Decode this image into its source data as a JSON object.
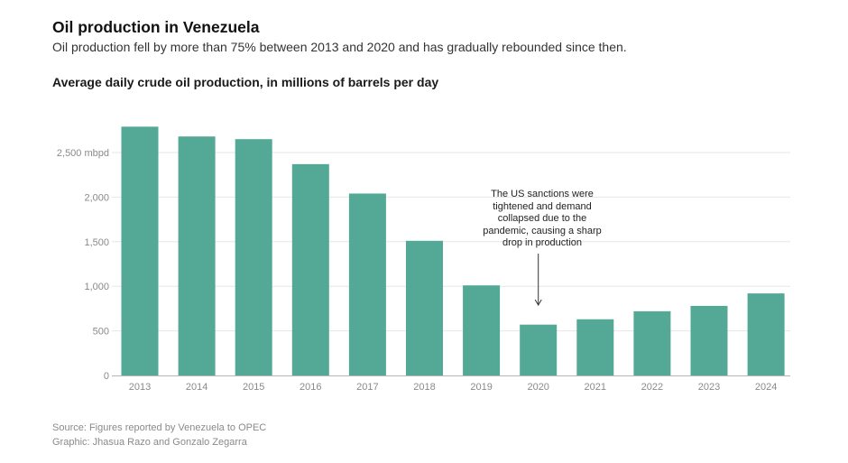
{
  "header": {
    "title": "Oil production in Venezuela",
    "subtitle": "Oil production fell by more than 75% between 2013 and 2020 and has gradually rebounded since then.",
    "chart_title": "Average daily crude oil production, in millions of barrels per day"
  },
  "annotation": {
    "text": "The US sanctions were tightened and demand collapsed due to the pandemic, causing a sharp drop in production",
    "target_category": "2020"
  },
  "footer": {
    "source": "Source: Figures reported by Venezuela to OPEC",
    "credit": "Graphic: Jhasua Razo and Gonzalo Zegarra"
  },
  "colors": {
    "bar": "#53a896",
    "gridline": "#e6e6e6",
    "axis_label": "#8a8a8a",
    "baseline": "#b5b5b5"
  },
  "chart_data": {
    "type": "bar",
    "title": "Average daily crude oil production, in millions of barrels per day",
    "categories": [
      "2013",
      "2014",
      "2015",
      "2016",
      "2017",
      "2018",
      "2019",
      "2020",
      "2021",
      "2022",
      "2023",
      "2024"
    ],
    "values": [
      2790,
      2680,
      2650,
      2370,
      2040,
      1510,
      1010,
      570,
      630,
      720,
      780,
      920
    ],
    "ylim": [
      0,
      2800
    ],
    "yticks": [
      0,
      500,
      1000,
      1500,
      2000,
      2500
    ],
    "ytick_labels": [
      "0",
      "500",
      "1,000",
      "1,500",
      "2,000",
      "2,500 mbpd"
    ],
    "grid": true,
    "legend": "none",
    "xlabel": "",
    "ylabel": ""
  }
}
